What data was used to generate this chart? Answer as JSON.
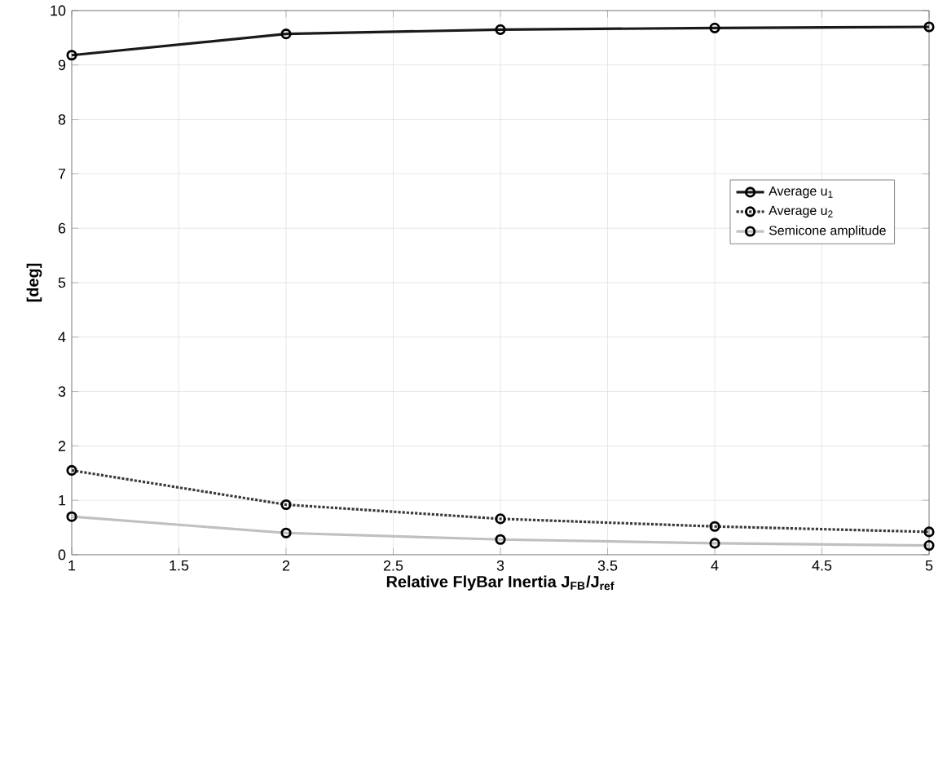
{
  "chart_data": {
    "type": "line",
    "x": [
      1,
      2,
      3,
      4,
      5
    ],
    "series": [
      {
        "name": "Average u$_{1}$",
        "color": "#1a1a1a",
        "line_style": "solid",
        "values": [
          9.18,
          9.57,
          9.65,
          9.68,
          9.7
        ]
      },
      {
        "name": "Average u$_{2}$",
        "color": "#3a3a3a",
        "line_style": "dotted",
        "values": [
          1.55,
          0.92,
          0.66,
          0.52,
          0.42
        ]
      },
      {
        "name": "Semicone amplitude",
        "color": "#c0c0c0",
        "line_style": "solid",
        "values": [
          0.7,
          0.4,
          0.28,
          0.21,
          0.17
        ]
      }
    ],
    "xlabel": "Relative FlyBar Inertia J$_{FB}$/J$_{ref}$",
    "ylabel": "[deg]",
    "xlim": [
      1,
      5
    ],
    "ylim": [
      0,
      10
    ],
    "xticks": [
      1,
      1.5,
      2,
      2.5,
      3,
      3.5,
      4,
      4.5,
      5
    ],
    "yticks": [
      0,
      1,
      2,
      3,
      4,
      5,
      6,
      7,
      8,
      9,
      10
    ],
    "grid": true,
    "legend": "right",
    "marker": "circle"
  }
}
